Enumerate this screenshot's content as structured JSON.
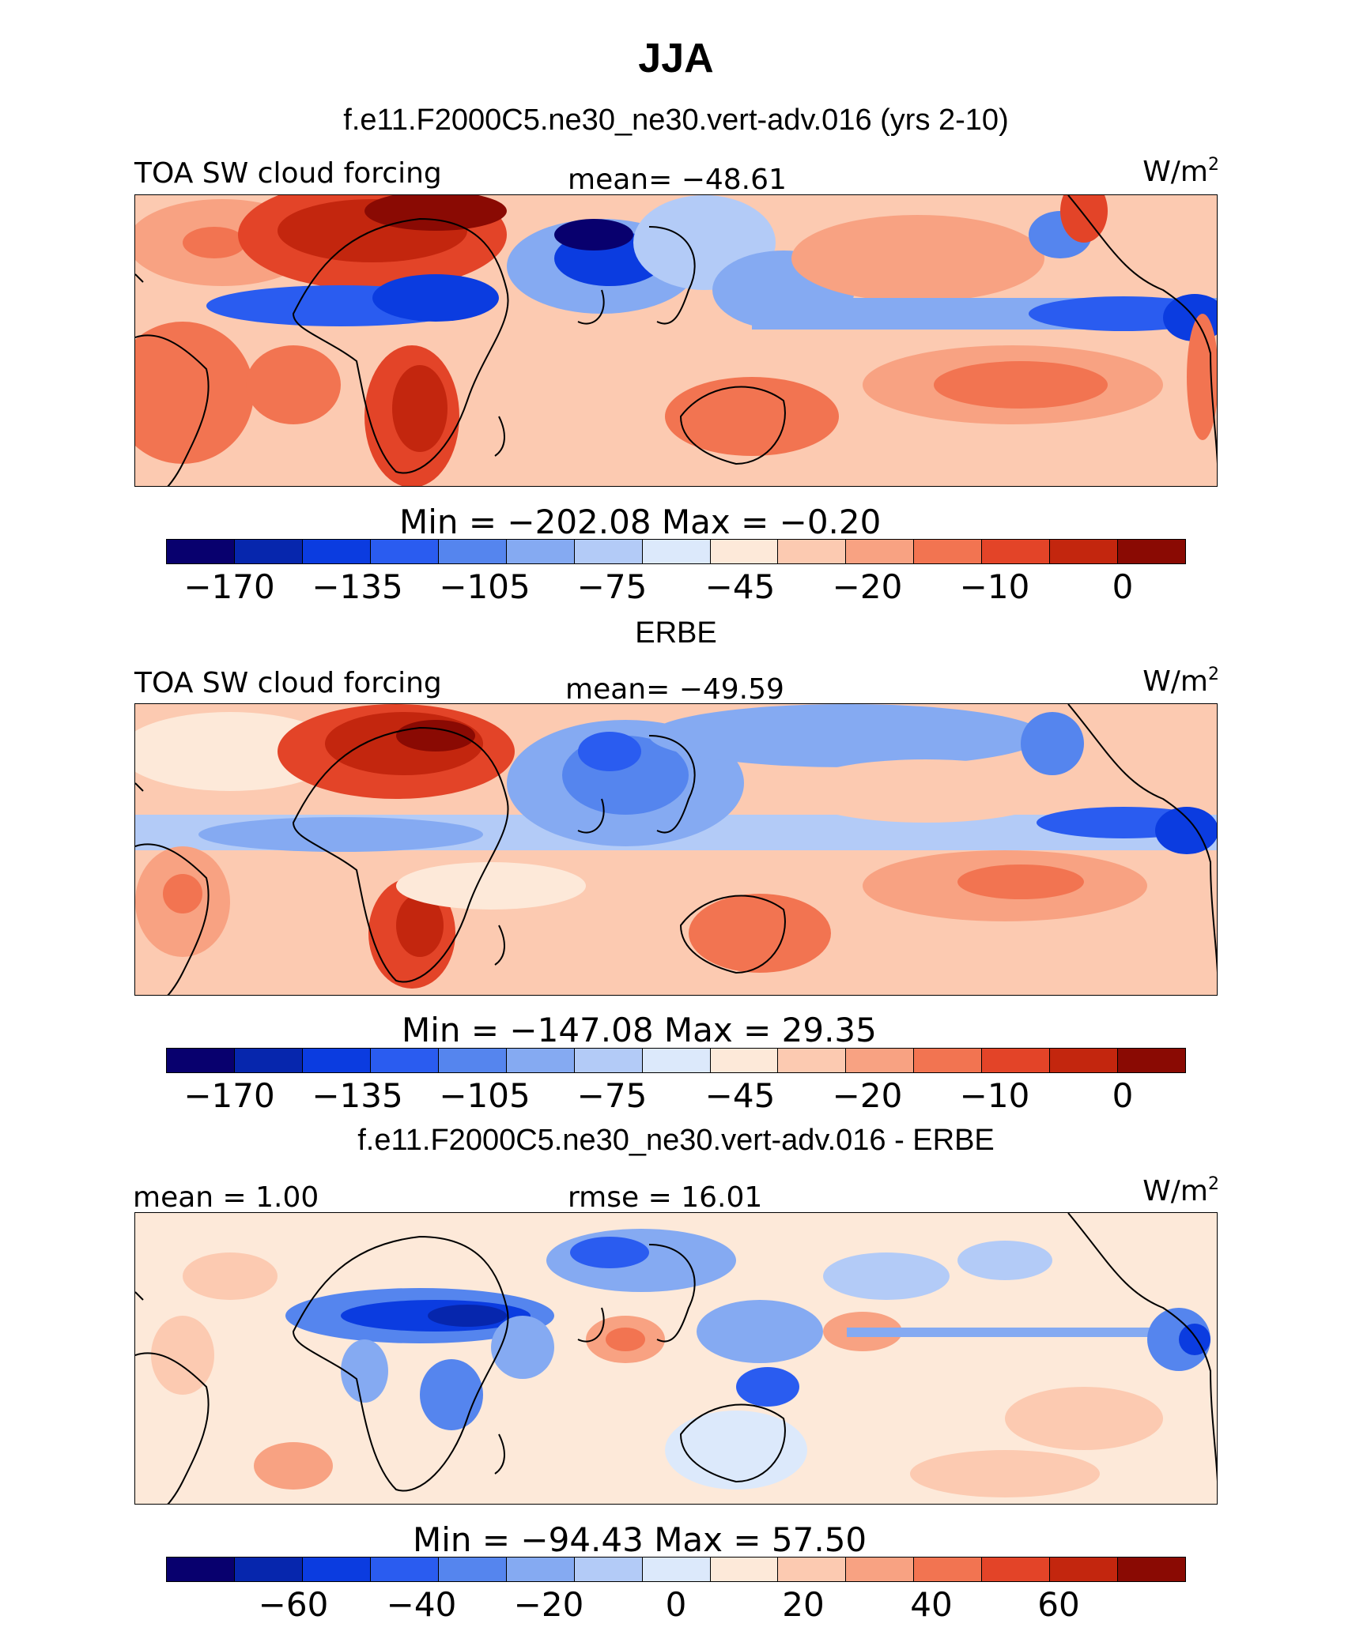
{
  "title": "JJA",
  "colors": [
    "#08006e",
    "#0626ad",
    "#0b3ce0",
    "#2a5cf0",
    "#5585ee",
    "#85aaf2",
    "#b3cbf7",
    "#dce9fb",
    "#fde9d9",
    "#fccab1",
    "#f8a282",
    "#f27451",
    "#e34428",
    "#c3260e",
    "#8a0a03"
  ],
  "panels": [
    {
      "section_title": "f.e11.F2000C5.ne30_ne30.vert-adv.016 (yrs 2-10)",
      "left_label": "TOA SW cloud forcing",
      "center_label": "mean=  −48.61",
      "units": "W/m",
      "units_sup": "2",
      "min_max": "Min  =  −202.08  Max  =    −0.20",
      "ticks": [
        "−170",
        "−135",
        "−105",
        "−75",
        "−45",
        "−20",
        "−10",
        "0"
      ]
    },
    {
      "section_title": "ERBE",
      "left_label": "TOA SW cloud forcing",
      "center_label": "mean=  −49.59",
      "units": "W/m",
      "units_sup": "2",
      "min_max": "Min  =  −147.08  Max  =    29.35",
      "ticks": [
        "−170",
        "−135",
        "−105",
        "−75",
        "−45",
        "−20",
        "−10",
        "0"
      ]
    },
    {
      "section_title": "f.e11.F2000C5.ne30_ne30.vert-adv.016 - ERBE",
      "left_label": "mean  =    1.00",
      "center_label": "rmse  =   16.01",
      "units": "W/m",
      "units_sup": "2",
      "min_max": "Min  =  −94.43  Max  =    57.50",
      "ticks": [
        "−60",
        "−40",
        "−20",
        "0",
        "20",
        "40",
        "60"
      ]
    }
  ]
}
